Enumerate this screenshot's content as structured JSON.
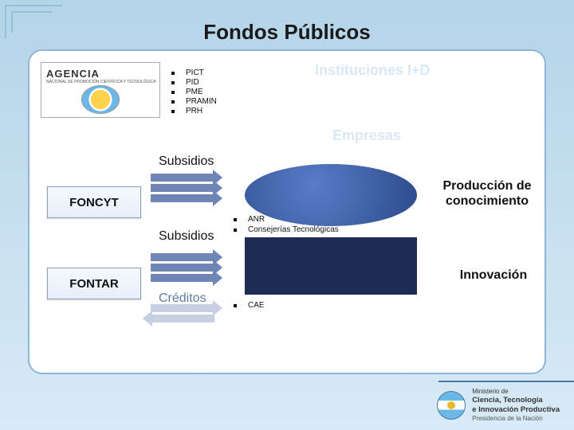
{
  "title": "Fondos Públicos",
  "agency": {
    "name": "AGENCIA",
    "subtitle": "NACIONAL DE PROMOCIÓN CIENTÍFICA Y TECNOLÓGICA",
    "emblem_colors": {
      "sun": "#ffd24d",
      "sky": "#6bb7e6"
    }
  },
  "programs_pict": [
    "PICT",
    "PID",
    "PME",
    "PRAMIN",
    "PRH"
  ],
  "headers": {
    "instituciones": "Instituciones I+D",
    "empresas": "Empresas"
  },
  "flows": {
    "subsidios": "Subsidios",
    "creditos": "Créditos"
  },
  "funds": {
    "foncyt": "FONCYT",
    "fontar": "FONTAR"
  },
  "programs_anr": [
    "ANR",
    "Consejerías Tecnológicas"
  ],
  "programs_cae": [
    "CAE"
  ],
  "results": {
    "produccion": "Producción de conocimiento",
    "innovacion": "Innovación"
  },
  "footer": {
    "line1": "Ministerio de",
    "line2": "Ciencia, Tecnología",
    "line3": "e Innovación Productiva",
    "line4": "Presidencia de la Nación"
  },
  "styling": {
    "bg_gradient": [
      "#b4d4e8",
      "#d8eaf5"
    ],
    "panel_border": "#8fb5d8",
    "fund_box_border": "#8a9bc0",
    "arrow_color": "#6f85b5",
    "arrow_color_dim": "#c7d0e2",
    "ellipse_gradient": [
      "#5a7cc8",
      "#2b4a8a"
    ],
    "rect_color": "#1f2a55",
    "ghost_text": "#d9e8f6",
    "creditos_color": "#5f7fa0",
    "title_fontsize": 26,
    "label_fontsize": 16,
    "bullet_fontsize": 10
  }
}
